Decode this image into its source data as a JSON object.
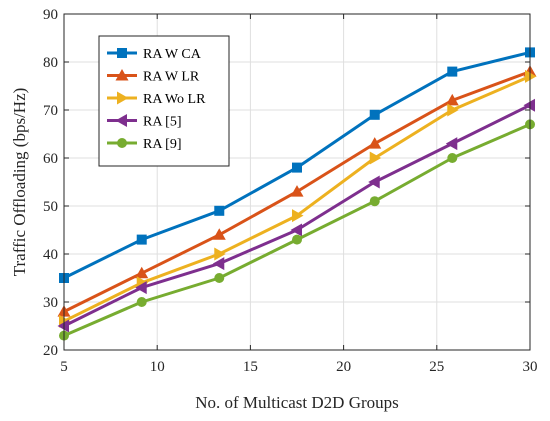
{
  "chart_data": {
    "type": "line",
    "xlabel": "No. of Multicast D2D Groups",
    "ylabel": "Traffic Offloading (bps/Hz)",
    "xlim": [
      5,
      30
    ],
    "ylim": [
      20,
      90
    ],
    "x": [
      5,
      9.17,
      13.33,
      17.5,
      21.67,
      25.83,
      30
    ],
    "x_ticks": [
      5,
      10,
      15,
      20,
      25,
      30
    ],
    "y_ticks": [
      20,
      30,
      40,
      50,
      60,
      70,
      80,
      90
    ],
    "grid": true,
    "legend_position": "top-left",
    "series": [
      {
        "name": "RA W CA",
        "color": "#0072BD",
        "marker": "square",
        "values": [
          35,
          43,
          49,
          58,
          69,
          78,
          82
        ]
      },
      {
        "name": "RA W LR",
        "color": "#D95319",
        "marker": "triangle-up",
        "values": [
          28,
          36,
          44,
          53,
          63,
          72,
          78
        ]
      },
      {
        "name": "RA Wo LR",
        "color": "#EDB120",
        "marker": "triangle-right",
        "values": [
          26,
          34,
          40,
          48,
          60,
          70,
          77
        ]
      },
      {
        "name": "RA [5]",
        "color": "#7E2F8E",
        "marker": "triangle-left",
        "values": [
          25,
          33,
          38,
          45,
          55,
          63,
          71
        ]
      },
      {
        "name": "RA [9]",
        "color": "#77AC30",
        "marker": "circle",
        "values": [
          23,
          30,
          35,
          43,
          51,
          60,
          67
        ]
      }
    ]
  }
}
